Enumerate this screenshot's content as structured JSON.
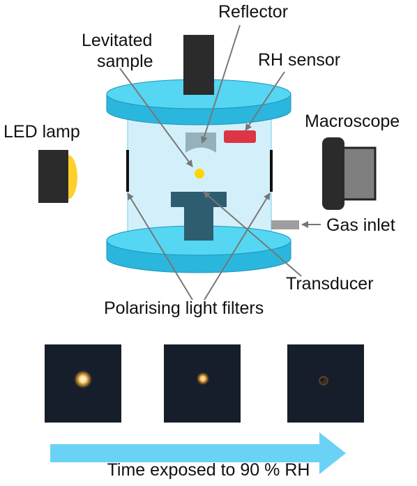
{
  "labels": {
    "reflector": "Reflector",
    "levitated_sample_line1": "Levitated",
    "levitated_sample_line2": "sample",
    "rh_sensor": "RH sensor",
    "led_lamp": "LED lamp",
    "macroscope": "Macroscope",
    "gas_inlet": "Gas inlet",
    "transducer": "Transducer",
    "polarising_filters": "Polarising light filters"
  },
  "time_arrow": {
    "caption": "Time exposed to 90 % RH"
  },
  "photo_series": [
    {
      "droplet_state": "bright"
    },
    {
      "droplet_state": "dimmer"
    },
    {
      "droplet_state": "dark"
    }
  ],
  "colors": {
    "chamber_disc": "#4dd0ee",
    "chamber_body": "#d3f0fa",
    "component_dark": "#2b2b2b",
    "transducer": "#2e5d70",
    "rh_sensor": "#dc3545",
    "sample": "#ffd400",
    "arrow": "#6ad3f5",
    "photo_bg": "#161e2b"
  }
}
